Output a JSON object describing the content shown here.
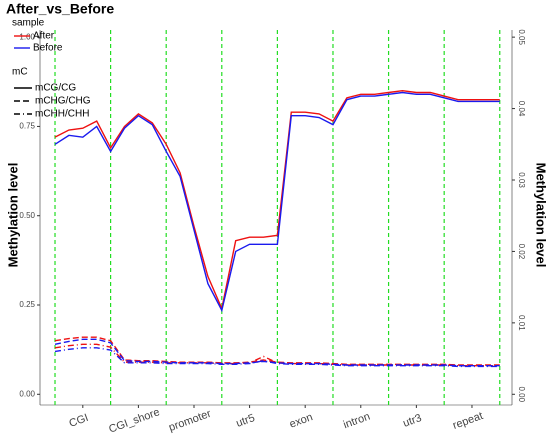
{
  "chart_data": {
    "type": "line",
    "title": "After_vs_Before",
    "ylabel": "Methylation level",
    "y2label": "Methylation level",
    "categories": [
      "CGI",
      "CGI_shore",
      "promoter",
      "utr5",
      "exon",
      "intron",
      "utr3",
      "repeat"
    ],
    "boundary_color": "#22dd22",
    "x": [
      0,
      0.25,
      0.5,
      0.75,
      1,
      1.25,
      1.5,
      1.75,
      2,
      2.25,
      2.5,
      2.75,
      3,
      3.25,
      3.5,
      3.75,
      4,
      4.25,
      4.5,
      4.75,
      5,
      5.25,
      5.5,
      5.75,
      6,
      6.25,
      6.5,
      6.75,
      7,
      7.25,
      7.5,
      7.75,
      8
    ],
    "xlim": [
      -0.27,
      8.22
    ],
    "ylim": [
      -0.03,
      1.02
    ],
    "yticks": [
      {
        "value": 0,
        "label": "0.00"
      },
      0.25,
      {
        "value": 0.5,
        "label": "0.50"
      },
      0.75,
      {
        "value": 1,
        "label": "1.00"
      }
    ],
    "y2lim": [
      -0.0015,
      0.051
    ],
    "y2ticks": [
      {
        "value": 0,
        "label": "0.00"
      },
      0.01,
      0.02,
      0.03,
      0.04,
      0.05
    ],
    "legend": {
      "color_title": "sample",
      "linetype_title": "mC"
    },
    "linetypes": [
      {
        "name": "mCG/CG",
        "dash": "solid"
      },
      {
        "name": "mCHG/CHG",
        "dash": "dashed"
      },
      {
        "name": "mCHH/CHH",
        "dash": "dotdash"
      }
    ],
    "series": [
      {
        "name": "After",
        "color": "#ee1111",
        "lines": [
          {
            "values": [
              0.72,
              0.74,
              0.745,
              0.765,
              0.69,
              0.75,
              0.785,
              0.76,
              0.7,
              0.62,
              0.47,
              0.33,
              0.24,
              0.43,
              0.44,
              0.44,
              0.445,
              0.79,
              0.79,
              0.785,
              0.765,
              0.83,
              0.84,
              0.84,
              0.845,
              0.85,
              0.845,
              0.845,
              0.835,
              0.825,
              0.825,
              0.825,
              0.825
            ]
          },
          {
            "axis": "y2",
            "values": [
              0.0075,
              0.0078,
              0.008,
              0.008,
              0.0075,
              0.0048,
              0.0047,
              0.0047,
              0.0046,
              0.0045,
              0.0045,
              0.0045,
              0.0044,
              0.0044,
              0.0045,
              0.0048,
              0.0045,
              0.0044,
              0.0044,
              0.0044,
              0.0043,
              0.0042,
              0.0042,
              0.0042,
              0.0042,
              0.0042,
              0.0042,
              0.0042,
              0.0042,
              0.0041,
              0.0041,
              0.0041,
              0.0041
            ]
          },
          {
            "axis": "y2",
            "values": [
              0.0065,
              0.0068,
              0.007,
              0.007,
              0.0066,
              0.0045,
              0.0045,
              0.0045,
              0.0044,
              0.0044,
              0.0044,
              0.0044,
              0.0043,
              0.0043,
              0.0044,
              0.0053,
              0.0044,
              0.0043,
              0.0043,
              0.0043,
              0.0042,
              0.0041,
              0.0041,
              0.0041,
              0.0041,
              0.0041,
              0.0041,
              0.0041,
              0.0041,
              0.004,
              0.004,
              0.004,
              0.004
            ]
          }
        ]
      },
      {
        "name": "Before",
        "color": "#1a1aee",
        "lines": [
          {
            "values": [
              0.7,
              0.725,
              0.72,
              0.75,
              0.68,
              0.745,
              0.78,
              0.755,
              0.68,
              0.61,
              0.46,
              0.31,
              0.235,
              0.4,
              0.42,
              0.42,
              0.42,
              0.78,
              0.78,
              0.775,
              0.755,
              0.825,
              0.835,
              0.835,
              0.84,
              0.845,
              0.84,
              0.84,
              0.83,
              0.82,
              0.82,
              0.82,
              0.82
            ]
          },
          {
            "axis": "y2",
            "values": [
              0.007,
              0.0074,
              0.0077,
              0.0077,
              0.0072,
              0.0047,
              0.0046,
              0.0046,
              0.0045,
              0.0044,
              0.0044,
              0.0044,
              0.0043,
              0.0043,
              0.0044,
              0.0046,
              0.0044,
              0.0043,
              0.0043,
              0.0043,
              0.0042,
              0.0041,
              0.0041,
              0.0041,
              0.0041,
              0.0041,
              0.0041,
              0.0041,
              0.0041,
              0.004,
              0.004,
              0.004,
              0.004
            ]
          },
          {
            "axis": "y2",
            "values": [
              0.006,
              0.0063,
              0.0065,
              0.0065,
              0.0062,
              0.0044,
              0.0044,
              0.0044,
              0.0043,
              0.0043,
              0.0043,
              0.0043,
              0.0042,
              0.0042,
              0.0043,
              0.0047,
              0.0043,
              0.0042,
              0.0042,
              0.0042,
              0.0041,
              0.004,
              0.004,
              0.004,
              0.004,
              0.004,
              0.004,
              0.004,
              0.004,
              0.0039,
              0.0039,
              0.0039,
              0.0039
            ]
          }
        ]
      }
    ]
  }
}
